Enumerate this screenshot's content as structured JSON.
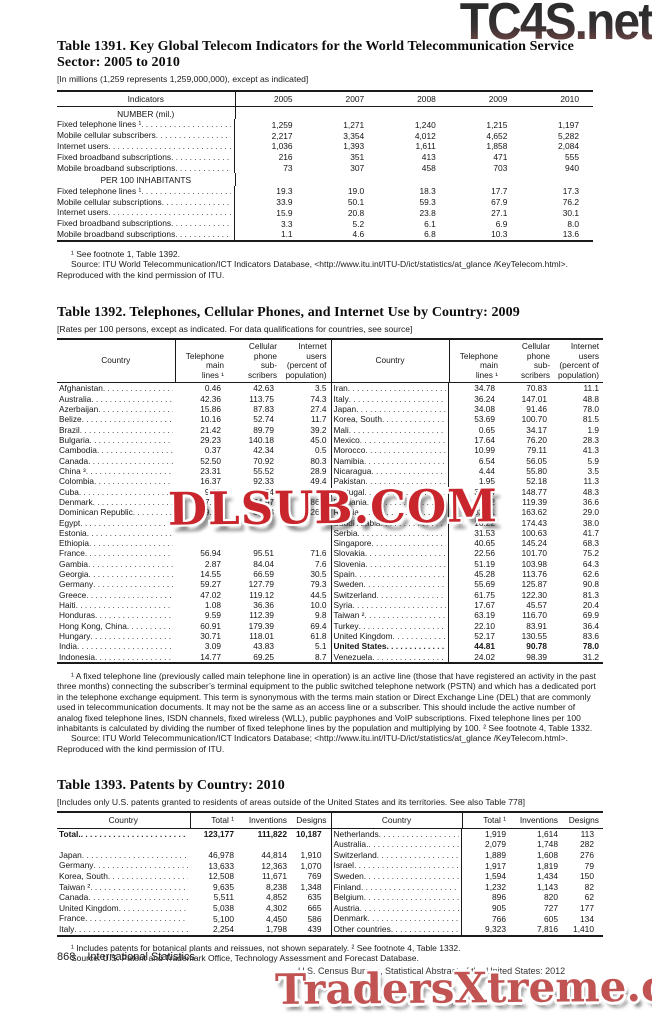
{
  "watermarks": {
    "top": "TC4S.net",
    "middle": "DLSUB.COM",
    "bottom": "TradersXtreme.com"
  },
  "footer": {
    "page_number": "868",
    "section": "International Statistics",
    "credit": "U.S. Census Bureau, Statistical Abstract of the United States: 2012"
  },
  "table1391": {
    "title": "Table 1391. Key Global Telecom Indicators for the World Telecommunication Service Sector: 2005 to 2010",
    "bracket": "[In millions (1,259 represents 1,259,000,000), except as indicated]",
    "col_headers": [
      "Indicators",
      "2005",
      "2007",
      "2008",
      "2009",
      "2010"
    ],
    "sections": [
      {
        "header": "NUMBER (mil.)",
        "rows": [
          [
            "Fixed telephone lines ¹",
            "1,259",
            "1,271",
            "1,240",
            "1,215",
            "1,197"
          ],
          [
            "Mobile cellular subscribers",
            "2,217",
            "3,354",
            "4,012",
            "4,652",
            "5,282"
          ],
          [
            "Internet users",
            "1,036",
            "1,393",
            "1,611",
            "1,858",
            "2,084"
          ],
          [
            "Fixed broadband subscriptions",
            "216",
            "351",
            "413",
            "471",
            "555"
          ],
          [
            "Mobile broadband subscriptions",
            "73",
            "307",
            "458",
            "703",
            "940"
          ]
        ]
      },
      {
        "header": "PER 100 INHABITANTS",
        "rows": [
          [
            "Fixed telephone lines ¹",
            "19.3",
            "19.0",
            "18.3",
            "17.7",
            "17.3"
          ],
          [
            "Mobile cellular subscriptions",
            "33.9",
            "50.1",
            "59.3",
            "67.9",
            "76.2"
          ],
          [
            "Internet users",
            "15.9",
            "20.8",
            "23.8",
            "27.1",
            "30.1"
          ],
          [
            "Fixed broadband subscriptions",
            "3.3",
            "5.2",
            "6.1",
            "6.9",
            "8.0"
          ],
          [
            "Mobile broadband subscriptions",
            "1.1",
            "4.6",
            "6.8",
            "10.3",
            "13.6"
          ]
        ]
      }
    ],
    "footnotes": [
      "¹ See footnote 1, Table 1392.",
      "Source: ITU World Telecommunication/ICT Indicators Database, <http://www.itu.int/ITU-D/ict/statistics/at_glance /KeyTelecom.html>. Reproduced with the kind permission of ITU."
    ]
  },
  "table1392": {
    "title": "Table 1392. Telephones, Cellular Phones, and Internet Use by Country: 2009",
    "bracket": "[Rates per 100 persons, except as indicated. For data qualifications for countries, see source]",
    "col_headers": {
      "country": "Country",
      "tel": "Telephone\nmain\nlines ¹",
      "cell": "Cellular\nphone\nsub-\nscribers",
      "net": "Internet\nusers\n(percent of\npopulation)"
    },
    "left_rows": [
      [
        "Afghanistan",
        "0.46",
        "42.63",
        "3.5"
      ],
      [
        "Australia",
        "42.36",
        "113.75",
        "74.3"
      ],
      [
        "Azerbaijan",
        "15.86",
        "87.83",
        "27.4"
      ],
      [
        "Belize",
        "10.16",
        "52.74",
        "11.7"
      ],
      [
        "Brazil",
        "21.42",
        "89.79",
        "39.2"
      ],
      [
        "Bulgaria",
        "29.23",
        "140.18",
        "45.0"
      ],
      [
        "Cambodia",
        "0.37",
        "42.34",
        "0.5"
      ],
      [
        "Canada",
        "52.50",
        "70.92",
        "80.3"
      ],
      [
        "China ³",
        "23.31",
        "55.52",
        "28.9"
      ],
      [
        "Colombia",
        "16.37",
        "92.33",
        "49.4"
      ],
      [
        "Cuba",
        "9.99",
        "5.54",
        "14.3"
      ],
      [
        "Denmark",
        "37.69",
        "124.97",
        "86.8"
      ],
      [
        "Dominican Republic",
        "9.57",
        "85.53",
        "26.8"
      ],
      [
        "Egypt",
        "",
        "",
        ""
      ],
      [
        "Estonia",
        "",
        "",
        ""
      ],
      [
        "Ethiopia",
        "",
        "",
        ""
      ],
      [
        "France",
        "56.94",
        "95.51",
        "71.6"
      ],
      [
        "Gambia",
        "2.87",
        "84.04",
        "7.6"
      ],
      [
        "Georgia",
        "14.55",
        "66.59",
        "30.5"
      ],
      [
        "Germany",
        "59.27",
        "127.79",
        "79.3"
      ],
      [
        "Greece",
        "47.02",
        "119.12",
        "44.5"
      ],
      [
        "Haiti",
        "1.08",
        "36.36",
        "10.0"
      ],
      [
        "Honduras",
        "9.59",
        "112.39",
        "9.8"
      ],
      [
        "Hong Kong, China",
        "60.91",
        "179.39",
        "69.4"
      ],
      [
        "Hungary",
        "30.71",
        "118.01",
        "61.8"
      ],
      [
        "India",
        "3.09",
        "43.83",
        "5.1"
      ],
      [
        "Indonesia",
        "14.77",
        "69.25",
        "8.7"
      ]
    ],
    "right_rows": [
      [
        "Iran",
        "34.78",
        "70.83",
        "11.1"
      ],
      [
        "Italy",
        "36.24",
        "147.01",
        "48.8"
      ],
      [
        "Japan",
        "34.08",
        "91.46",
        "78.0"
      ],
      [
        "Korea, South",
        "53.69",
        "100.70",
        "81.5"
      ],
      [
        "Mali",
        "0.65",
        "34.17",
        "1.9"
      ],
      [
        "Mexico",
        "17.64",
        "76.20",
        "28.3"
      ],
      [
        "Morocco",
        "10.99",
        "79.11",
        "41.3"
      ],
      [
        "Namibia",
        "6.54",
        "56.05",
        "5.9"
      ],
      [
        "Nicaragua",
        "4.44",
        "55.80",
        "3.5"
      ],
      [
        "Pakistan",
        "1.95",
        "52.18",
        "11.3"
      ],
      [
        "Portugal",
        "39.74",
        "148.77",
        "48.3"
      ],
      [
        "Romania",
        "25.02",
        "119.39",
        "36.6"
      ],
      [
        "Russia",
        "32.21",
        "163.62",
        "29.0"
      ],
      [
        "Saudi Arabia",
        "16.22",
        "174.43",
        "38.0"
      ],
      [
        "Serbia",
        "31.53",
        "100.63",
        "41.7"
      ],
      [
        "Singapore",
        "40.65",
        "145.24",
        "68.3"
      ],
      [
        "Slovakia",
        "22.56",
        "101.70",
        "75.2"
      ],
      [
        "Slovenia",
        "51.19",
        "103.98",
        "64.3"
      ],
      [
        "Spain",
        "45.28",
        "113.76",
        "62.6"
      ],
      [
        "Sweden",
        "55.69",
        "125.87",
        "90.8"
      ],
      [
        "Switzerland",
        "61.75",
        "122.30",
        "81.3"
      ],
      [
        "Syria",
        "17.67",
        "45.57",
        "20.4"
      ],
      [
        "Taiwan ²",
        "63.19",
        "116.70",
        "69.9"
      ],
      [
        "Turkey",
        "22.10",
        "83.91",
        "36.4"
      ],
      [
        "United Kingdom",
        "52.17",
        "130.55",
        "83.6"
      ],
      [
        "United States",
        "44.81",
        "90.78",
        "78.0"
      ],
      [
        "Venezuela",
        "24.02",
        "98.39",
        "31.2"
      ]
    ],
    "bold_rows": [
      "United States"
    ],
    "footnotes": [
      "¹ A fixed telephone line (previously called main telephone line in operation) is an active line (those that have registered an activity in the past three months) connecting the subscriber’s terminal equipment to the public switched telephone network (PSTN) and which has a dedicated port in the telephone exchange equipment. This term is synonymous with the terms main station or Direct Exchange Line (DEL) that are commonly used in telecommunication documents. It may not be the same as an access line or a subscriber. This should include the active number of analog fixed telephone lines, ISDN channels, fixed wireless (WLL), public payphones and VoIP subscriptions. Fixed telephone lines per 100 inhabitants is calculated by dividing the number of fixed telephone lines by the population and multiplying by 100. ² See footnote 4, Table 1332.",
      "Source: ITU World Telecommunication/ICT Indicators Database; <http://www.itu.int/ITU-D/ict/statistics/at_glance /KeyTelecom.html>. Reproduced with the kind permission of ITU."
    ]
  },
  "table1393": {
    "title": "Table 1393. Patents by Country: 2010",
    "bracket": "[Includes only U.S. patents granted to residents of areas outside of the United States and its territories. See also Table 778]",
    "col_headers": {
      "country": "Country",
      "total": "Total ¹",
      "inventions": "Inventions",
      "designs": "Designs"
    },
    "left_rows": [
      [
        "Total.",
        "123,177",
        "111,822",
        "10,187"
      ],
      [
        "",
        "",
        "",
        ""
      ],
      [
        "Japan",
        "46,978",
        "44,814",
        "1,910"
      ],
      [
        "Germany",
        "13,633",
        "12,363",
        "1,070"
      ],
      [
        "Korea, South",
        "12,508",
        "11,671",
        "769"
      ],
      [
        "Taiwan ²",
        "9,635",
        "8,238",
        "1,348"
      ],
      [
        "Canada",
        "5,511",
        "4,852",
        "635"
      ],
      [
        "United Kingdom",
        "5,038",
        "4,302",
        "665"
      ],
      [
        "France",
        "5,100",
        "4,450",
        "586"
      ],
      [
        "Italy",
        "2,254",
        "1,798",
        "439"
      ]
    ],
    "right_rows": [
      [
        "Netherlands",
        "1,919",
        "1,614",
        "113"
      ],
      [
        "Australia.",
        "2,079",
        "1,748",
        "282"
      ],
      [
        "Switzerland",
        "1,889",
        "1,608",
        "276"
      ],
      [
        "Israel",
        "1,917",
        "1,819",
        "79"
      ],
      [
        "Sweden",
        "1,594",
        "1,434",
        "150"
      ],
      [
        "Finland",
        "1,232",
        "1,143",
        "82"
      ],
      [
        "Belgium",
        "896",
        "820",
        "62"
      ],
      [
        "Austria",
        "905",
        "727",
        "177"
      ],
      [
        "Denmark",
        "766",
        "605",
        "134"
      ],
      [
        "Other countries",
        "9,323",
        "7,816",
        "1,410"
      ]
    ],
    "bold_rows": [
      "Total."
    ],
    "footnotes": [
      "¹ Includes patents for botanical plants and reissues, not shown separately. ² See footnote 4, Table 1332.",
      "Source: U.S. Patent and Trademark Office, Technology Assessment and Forecast Database."
    ]
  }
}
